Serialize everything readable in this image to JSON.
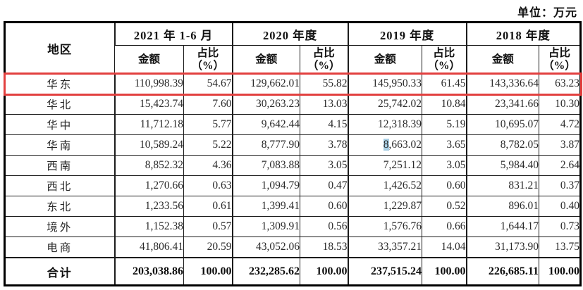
{
  "unit_label": "单位：万元",
  "colors": {
    "highlight_box_red": "#e2403f",
    "char_selection_blue": "#a9cfe4",
    "table_border": "#000000"
  },
  "table": {
    "region_header": "地区",
    "col_groups": [
      {
        "label": "2021 年 1-6 月"
      },
      {
        "label": "2020 年度"
      },
      {
        "label": "2019 年度"
      },
      {
        "label": "2018 年度"
      }
    ],
    "sub_headers": {
      "amount": "金额",
      "ratio_line1": "占比",
      "ratio_line2": "（%）"
    },
    "rows": [
      {
        "region": "华东",
        "highlight": true,
        "values": [
          "110,998.39",
          "54.67",
          "129,662.01",
          "55.82",
          "145,950.33",
          "61.45",
          "143,336.64",
          "63.23"
        ]
      },
      {
        "region": "华北",
        "values": [
          "15,423.74",
          "7.60",
          "30,263.23",
          "13.03",
          "25,742.02",
          "10.84",
          "23,341.66",
          "10.30"
        ]
      },
      {
        "region": "华中",
        "values": [
          "11,712.18",
          "5.77",
          "9,642.44",
          "4.15",
          "12,318.39",
          "5.19",
          "10,695.07",
          "4.72"
        ]
      },
      {
        "region": "华南",
        "values": [
          "10,589.24",
          "5.22",
          "8,777.90",
          "3.78",
          "8,663.02",
          "3.65",
          "8,782.05",
          "3.87"
        ]
      },
      {
        "region": "西南",
        "values": [
          "8,852.32",
          "4.36",
          "7,083.88",
          "3.05",
          "7,251.12",
          "3.05",
          "5,984.40",
          "2.64"
        ]
      },
      {
        "region": "西北",
        "values": [
          "1,270.66",
          "0.63",
          "1,094.79",
          "0.47",
          "1,426.52",
          "0.60",
          "831.21",
          "0.37"
        ]
      },
      {
        "region": "东北",
        "values": [
          "1,233.56",
          "0.61",
          "1,399.41",
          "0.60",
          "1,229.87",
          "0.52",
          "896.01",
          "0.40"
        ]
      },
      {
        "region": "境外",
        "values": [
          "1,152.38",
          "0.57",
          "1,309.91",
          "0.56",
          "1,576.76",
          "0.66",
          "1,644.17",
          "0.73"
        ]
      },
      {
        "region": "电商",
        "values": [
          "41,806.41",
          "20.59",
          "43,052.06",
          "18.53",
          "33,357.21",
          "14.04",
          "31,173.90",
          "13.75"
        ]
      }
    ],
    "total_row": {
      "region": "合计",
      "values": [
        "203,038.86",
        "100.00",
        "232,285.62",
        "100.00",
        "237,515.24",
        "100.00",
        "226,685.11",
        "100.00"
      ]
    },
    "char_selection": {
      "row_index": 3,
      "value_index": 4,
      "char_count": 1
    }
  }
}
